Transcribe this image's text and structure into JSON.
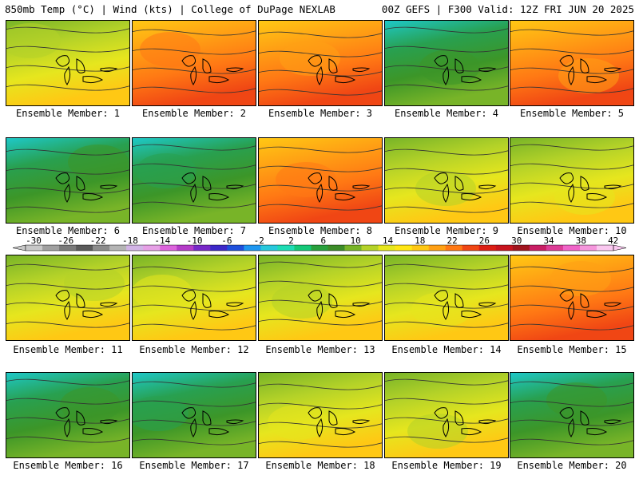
{
  "header": {
    "left": "850mb Temp (°C) | Wind (kts) | College of DuPage NEXLAB",
    "right": "00Z GEFS | F300 Valid: 12Z FRI JUN 20 2025"
  },
  "members": [
    {
      "label": "Ensemble Member: 1",
      "warmth": 0.35
    },
    {
      "label": "Ensemble Member: 2",
      "warmth": 0.55
    },
    {
      "label": "Ensemble Member: 3",
      "warmth": 0.6
    },
    {
      "label": "Ensemble Member: 4",
      "warmth": 0.15
    },
    {
      "label": "Ensemble Member: 5",
      "warmth": 0.85
    },
    {
      "label": "Ensemble Member: 6",
      "warmth": 0.15
    },
    {
      "label": "Ensemble Member: 7",
      "warmth": 0.0
    },
    {
      "label": "Ensemble Member: 8",
      "warmth": 0.75
    },
    {
      "label": "Ensemble Member: 9",
      "warmth": 0.5
    },
    {
      "label": "Ensemble Member: 10",
      "warmth": 0.5
    },
    {
      "label": "Ensemble Member: 11",
      "warmth": 0.4
    },
    {
      "label": "Ensemble Member: 12",
      "warmth": 0.45
    },
    {
      "label": "Ensemble Member: 13",
      "warmth": 0.35
    },
    {
      "label": "Ensemble Member: 14",
      "warmth": 0.25
    },
    {
      "label": "Ensemble Member: 15",
      "warmth": 0.6
    },
    {
      "label": "Ensemble Member: 16",
      "warmth": 0.15
    },
    {
      "label": "Ensemble Member: 17",
      "warmth": 0.15
    },
    {
      "label": "Ensemble Member: 18",
      "warmth": 0.35
    },
    {
      "label": "Ensemble Member: 19",
      "warmth": 0.4
    },
    {
      "label": "Ensemble Member: 20",
      "warmth": 0.1
    }
  ],
  "colorbar": {
    "ticks": [
      "-30",
      "-26",
      "-22",
      "-18",
      "-14",
      "-10",
      "-6",
      "-2",
      "2",
      "6",
      "10",
      "14",
      "18",
      "22",
      "26",
      "30",
      "34",
      "38",
      "42"
    ],
    "colors": [
      "#c8c8c8",
      "#a0a0a0",
      "#7a7a7a",
      "#5a5a5a",
      "#8c8c8c",
      "#b4b4b4",
      "#d2b4e6",
      "#e6a0e6",
      "#dc64dc",
      "#b43cc8",
      "#7828c8",
      "#3c28c8",
      "#1e50dc",
      "#1e96f0",
      "#28c8dc",
      "#1edcb4",
      "#14c878",
      "#28a03c",
      "#3c8c28",
      "#78b428",
      "#b4d228",
      "#e6e61e",
      "#ffe614",
      "#ffc814",
      "#ffa014",
      "#ff7814",
      "#f04614",
      "#dc1e14",
      "#c8141e",
      "#a0141e",
      "#c81e64",
      "#dc3c96",
      "#f064c8",
      "#f596dc",
      "#fac8f0"
    ]
  }
}
